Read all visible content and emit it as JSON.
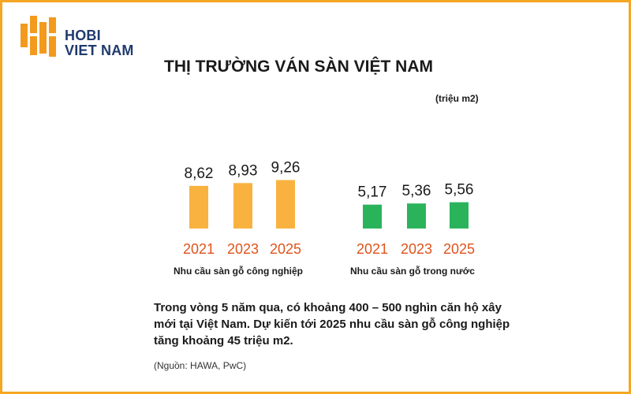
{
  "logo": {
    "line1": "HOBI",
    "line2": "VIET NAM"
  },
  "title": "THỊ TRƯỜNG VÁN SÀN VIỆT NAM",
  "unit": "(triệu m2)",
  "colors": {
    "left_series": "#f9b23f",
    "right_series": "#2bb35c",
    "year_label": "#e0531c",
    "border": "#f5a623",
    "logo_blocks": "#f39a1e",
    "logo_text": "#1f3a6d"
  },
  "chart_data": [
    {
      "type": "bar",
      "categories": [
        "2021",
        "2023",
        "2025"
      ],
      "values": [
        8.62,
        8.93,
        9.26
      ],
      "value_labels": [
        "8,62",
        "8,93",
        "9,26"
      ],
      "xlabel": "Nhu cầu sàn gỗ công nghiệp",
      "ylabel": "",
      "unit": "triệu m2",
      "grid": false
    },
    {
      "type": "bar",
      "categories": [
        "2021",
        "2023",
        "2025"
      ],
      "values": [
        5.17,
        5.36,
        5.56
      ],
      "value_labels": [
        "5,17",
        "5,36",
        "5,56"
      ],
      "xlabel": "Nhu cầu sàn gỗ trong nước",
      "ylabel": "",
      "unit": "triệu m2",
      "grid": false
    }
  ],
  "description": "Trong vòng 5 năm qua, có khoảng 400 – 500 nghìn căn hộ xây mới tại Việt Nam. Dự kiến tới 2025 nhu cầu sàn gỗ công nghiệp tăng khoảng 45 triệu m2.",
  "source": "(Nguồn: HAWA, PwC)"
}
